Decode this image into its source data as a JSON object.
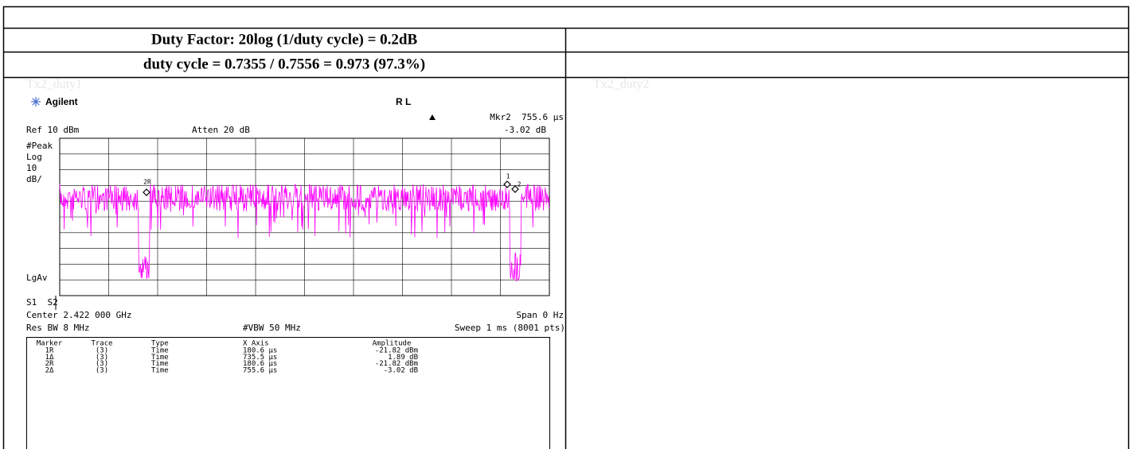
{
  "header": {
    "row1": "Duty Factor: 20log (1/duty cycle) = 0.2dB",
    "row2": "duty cycle = 0.7355 / 0.7556 = 0.973 (97.3%)"
  },
  "left_cell": {
    "caption": "Tx2_duty1",
    "analyzer": {
      "brand": "Agilent",
      "mode": "R L",
      "marker_readout": "Mkr2  755.6 µs",
      "marker_delta": "-3.02 dB",
      "ref_level": "Ref 10 dBm",
      "attenuation": "Atten 20 dB",
      "side_labels": [
        "#Peak",
        "Log",
        "10",
        "dB/"
      ],
      "detector": "LgAv",
      "switches": "S1  S2",
      "center": "Center 2.422 000 GHz",
      "span": "Span 0 Hz",
      "rbw": "Res BW 8 MHz",
      "vbw": "#VBW 50 MHz",
      "sweep": "Sweep 1 ms (8001 pts)",
      "trace_markers": [
        "2R",
        "1",
        "2"
      ],
      "marker_table": {
        "headers": [
          "Marker",
          "Trace",
          "Type",
          "X Axis",
          "Amplitude"
        ],
        "rows": [
          [
            "1R",
            "(3)",
            "Time",
            "180.6 µs",
            "-21.82 dBm"
          ],
          [
            "1Δ",
            "(3)",
            "Time",
            "735.5 µs",
            "1.89 dB"
          ],
          [
            "2R",
            "(3)",
            "Time",
            "180.6 µs",
            "-21.82 dBm"
          ],
          [
            "2Δ",
            "(3)",
            "Time",
            "755.6 µs",
            "-3.02 dB"
          ]
        ]
      }
    }
  },
  "right_cell": {
    "caption": "Tx2_duty2"
  }
}
